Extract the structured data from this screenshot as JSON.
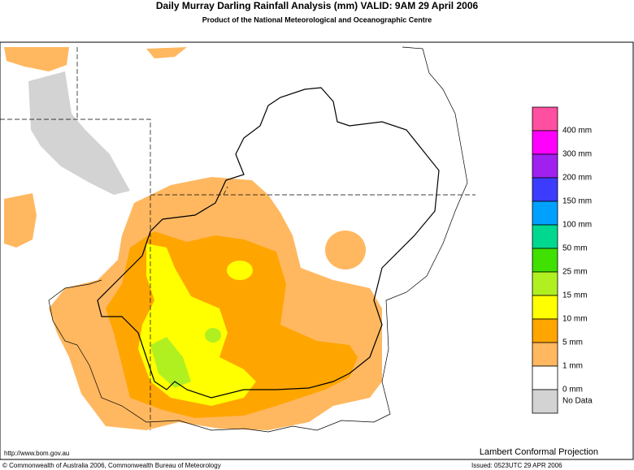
{
  "header": {
    "title": "Daily Murray Darling Rainfall Analysis (mm)  VALID: 9AM 29 April 2006",
    "subtitle": "Product of the National Meteorological and Oceanographic Centre"
  },
  "legend": {
    "items": [
      {
        "label": "400 mm",
        "color": "#ff4fa0"
      },
      {
        "label": "300 mm",
        "color": "#ff00ff"
      },
      {
        "label": "200 mm",
        "color": "#a020f0"
      },
      {
        "label": "150 mm",
        "color": "#3c3cff"
      },
      {
        "label": "100 mm",
        "color": "#00a0ff"
      },
      {
        "label": "50 mm",
        "color": "#00d890"
      },
      {
        "label": "25 mm",
        "color": "#40e000"
      },
      {
        "label": "15 mm",
        "color": "#b0f020"
      },
      {
        "label": "10 mm",
        "color": "#ffff00"
      },
      {
        "label": "5 mm",
        "color": "#ffa500"
      },
      {
        "label": "1 mm",
        "color": "#ffb860"
      },
      {
        "label": "0 mm",
        "color": "#ffffff"
      },
      {
        "label": "No Data",
        "color": "#d3d3d3"
      }
    ]
  },
  "footer": {
    "url": "http://www.bom.gov.au",
    "projection": "Lambert Conformal Projection",
    "copyright": "© Commonwealth of Australia 2006, Commonwealth Bureau of Meteorology",
    "issued": "Issued: 0523UTC 29 APR 2006"
  }
}
